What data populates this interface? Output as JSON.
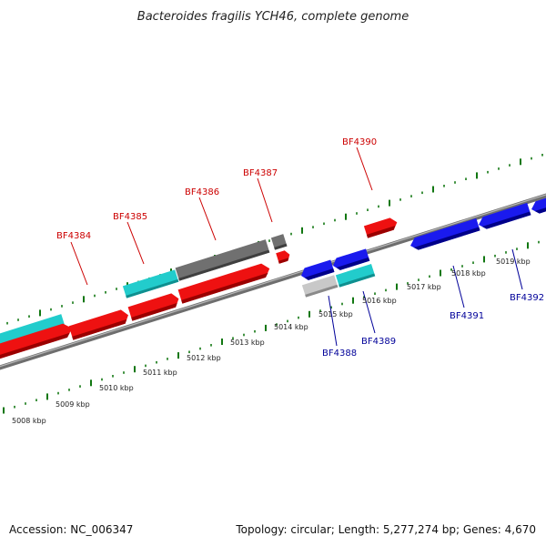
{
  "title": "Bacteroides fragilis YCH46, complete genome",
  "footer": {
    "accession": "Accession: NC_006347",
    "summary": "Topology: circular; Length: 5,277,274 bp; Genes: 4,670"
  },
  "colors": {
    "forward_gene": "#ee1111",
    "reverse_gene": "#1a1aee",
    "forward_label": "#cc0000",
    "reverse_label": "#000099",
    "cyan_feature": "#22cccc",
    "gray_feature": "#707070",
    "light_gray_feature": "#c8c8c8",
    "backbone": "#888888",
    "ticks": "#117711"
  },
  "scale_labels": [
    "5008 kbp",
    "5009 kbp",
    "5010 kbp",
    "5011 kbp",
    "5012 kbp",
    "5013 kbp",
    "5014 kbp",
    "5015 kbp",
    "5016 kbp",
    "5017 kbp",
    "5018 kbp",
    "5019 kbp"
  ],
  "forward_genes": [
    {
      "id": "BF4384"
    },
    {
      "id": "BF4385"
    },
    {
      "id": "BF4386"
    },
    {
      "id": "BF4387"
    },
    {
      "id": "BF4390"
    }
  ],
  "reverse_genes": [
    {
      "id": "BF4388"
    },
    {
      "id": "BF4389"
    },
    {
      "id": "BF4391"
    },
    {
      "id": "BF4392"
    }
  ]
}
